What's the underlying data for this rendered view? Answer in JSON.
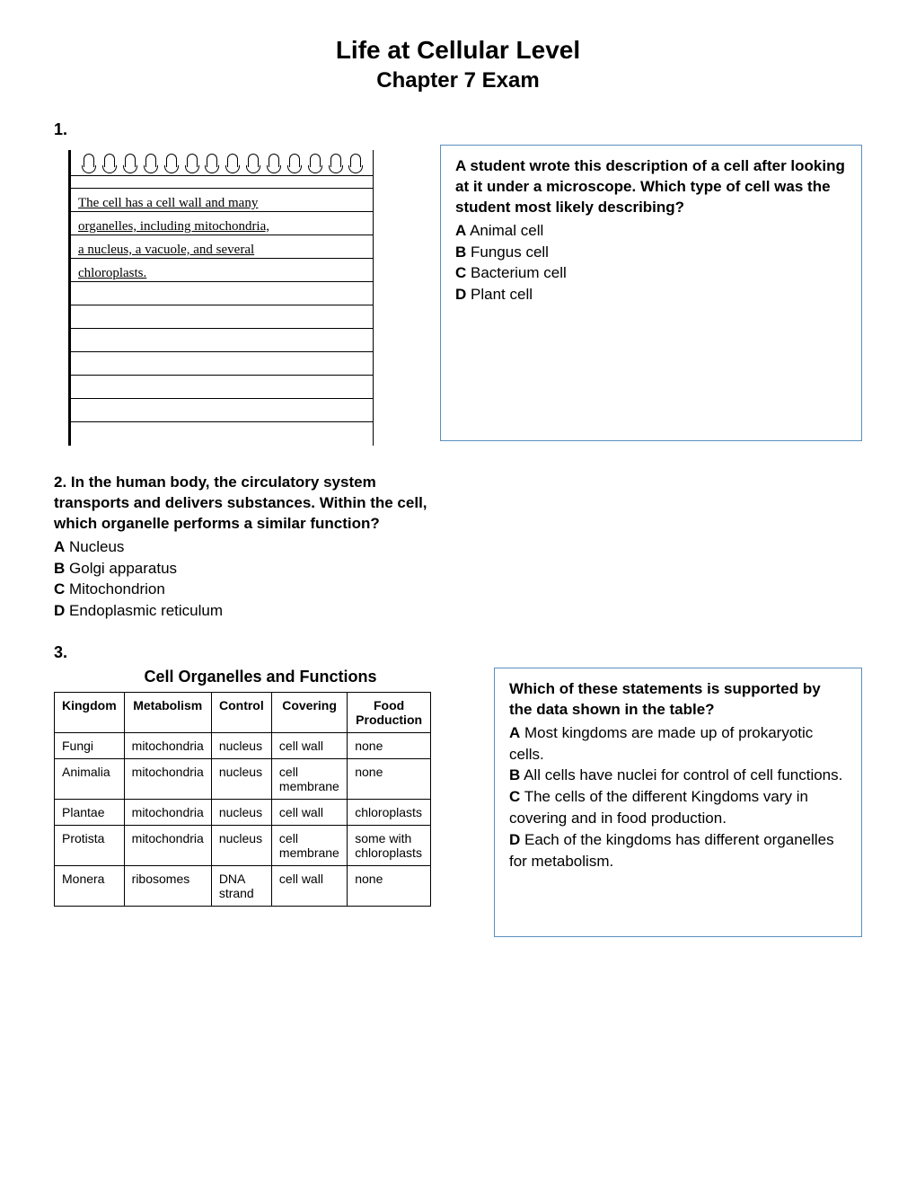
{
  "header": {
    "title": "Life at Cellular Level",
    "subtitle": "Chapter 7 Exam"
  },
  "q1": {
    "number": "1.",
    "note_lines": [
      "The cell has a cell wall and many",
      "organelles, including mitochondria,",
      "a nucleus, a vacuole, and several",
      "chloroplasts."
    ],
    "question": "A student wrote this description of a cell after looking at it under a microscope. Which type of cell was the student most likely describing?",
    "choices": {
      "A": "Animal cell",
      "B": "Fungus cell",
      "C": "Bacterium cell",
      "D": "Plant cell"
    }
  },
  "q2": {
    "number": "2.",
    "stem": "In the human body, the circulatory system transports and delivers substances. Within the cell, which organelle performs a similar function?",
    "choices": {
      "A": "Nucleus",
      "B": "Golgi apparatus",
      "C": "Mitochondrion",
      "D": "Endoplasmic reticulum"
    }
  },
  "q3": {
    "number": "3.",
    "table_title": "Cell Organelles and Functions",
    "columns": [
      "Kingdom",
      "Metabolism",
      "Control",
      "Covering",
      "Food Production"
    ],
    "rows": [
      [
        "Fungi",
        "mitochondria",
        "nucleus",
        "cell wall",
        "none"
      ],
      [
        "Animalia",
        "mitochondria",
        "nucleus",
        "cell membrane",
        "none"
      ],
      [
        "Plantae",
        "mitochondria",
        "nucleus",
        "cell wall",
        "chloroplasts"
      ],
      [
        "Protista",
        "mitochondria",
        "nucleus",
        "cell membrane",
        "some with chloroplasts"
      ],
      [
        "Monera",
        "ribosomes",
        "DNA strand",
        "cell wall",
        "none"
      ]
    ],
    "question": "Which of these statements is supported by the data shown in the table?",
    "choices": {
      "A": "Most kingdoms are made up of prokaryotic cells.",
      "B": "All cells have nuclei for control of cell functions.",
      "C": " The cells of the different Kingdoms vary in covering and in food production.",
      "D": "Each of the kingdoms has different organelles for metabolism."
    }
  },
  "colors": {
    "box_border": "#5a8fbf",
    "text": "#000000",
    "background": "#ffffff"
  }
}
